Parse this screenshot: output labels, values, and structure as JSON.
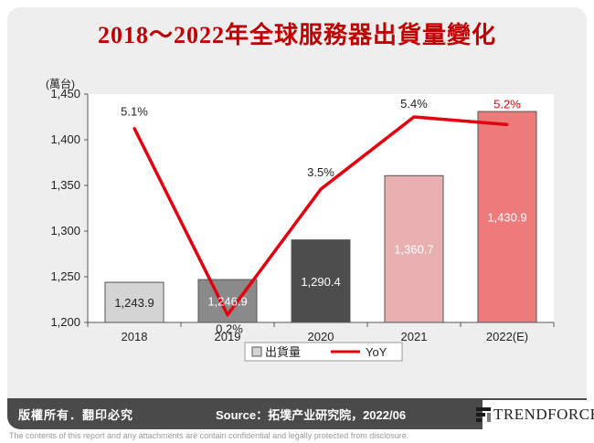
{
  "title": "2018～2022年全球服務器出貨量變化",
  "chart_data": {
    "type": "bar",
    "categories": [
      "2018",
      "2019",
      "2020",
      "2021",
      "2022(E)"
    ],
    "series": [
      {
        "name": "出貨量",
        "type": "bar",
        "values": [
          1243.9,
          1246.9,
          1290.4,
          1360.7,
          1430.9
        ],
        "value_labels": [
          "1,243.9",
          "1,246.9",
          "1,290.4",
          "1,360.7",
          "1,430.9"
        ],
        "colors": [
          "#d4d4d4",
          "#8a8a8a",
          "#4d4d4d",
          "#e8b0b0",
          "#ee7b7b"
        ]
      },
      {
        "name": "YoY",
        "type": "line",
        "values": [
          5.1,
          0.2,
          3.5,
          5.4,
          5.2
        ],
        "value_labels": [
          "5.1%",
          "0.2%",
          "3.5%",
          "5.4%",
          "5.2%"
        ],
        "color": "#e3000f"
      }
    ],
    "yunit": "(萬台)",
    "ylim": [
      1200,
      1450
    ],
    "yticks": [
      1200,
      1250,
      1300,
      1350,
      1400,
      1450
    ],
    "ytick_labels": [
      "1,200",
      "1,250",
      "1,300",
      "1,350",
      "1,400",
      "1,450"
    ],
    "secondary_ylim": [
      0,
      6
    ],
    "legend_position": "bottom",
    "grid": false
  },
  "footer": {
    "copyright": "版權所有．翻印必究",
    "source": "Source：拓墣产业研究院，2022/06",
    "brand": "TRENDFORCE",
    "disclaimer": "The contents of this report and any attachments are contain confidential and legally protected from disclosure."
  },
  "colors": {
    "accent": "#c00000",
    "line": "#e3000f",
    "footer": "#4a4a4a"
  }
}
